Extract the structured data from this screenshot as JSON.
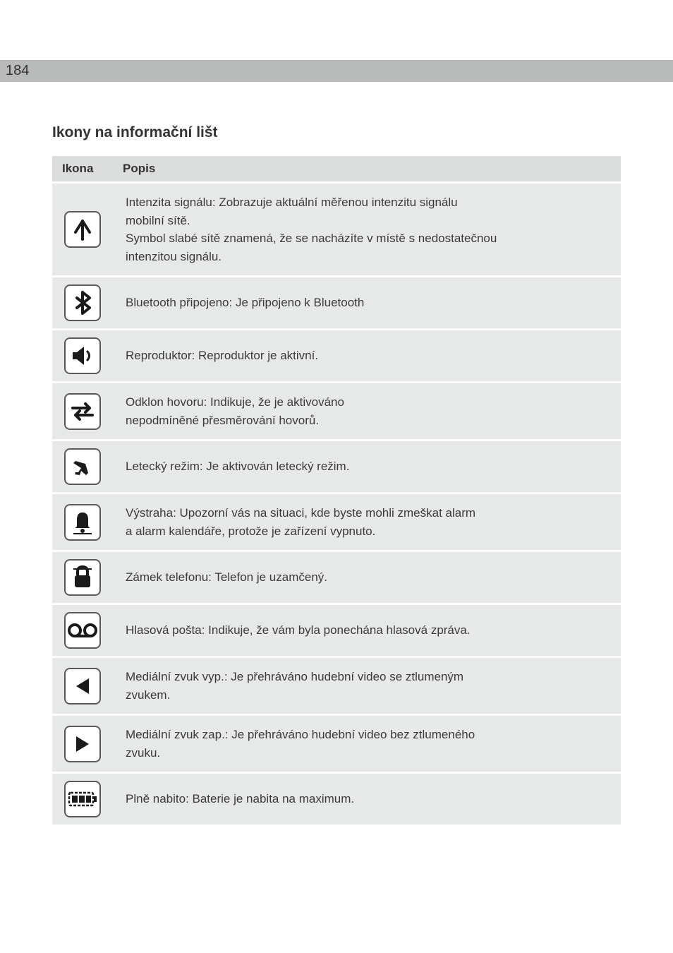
{
  "page_number": "184",
  "section_title": "Ikony na informační lišt",
  "table": {
    "headers": {
      "icon": "Ikona",
      "desc": "Popis"
    },
    "rows": [
      {
        "icon": "signal",
        "desc_lines": [
          "Intenzita signálu: Zobrazuje aktuální měřenou intenzitu signálu",
          "mobilní sítě.",
          "Symbol slabé sítě znamená, že se nacházíte v místě s nedostatečnou",
          "intenzitou signálu."
        ]
      },
      {
        "icon": "bluetooth",
        "desc_lines": [
          "Bluetooth připojeno: Je připojeno k Bluetooth"
        ]
      },
      {
        "icon": "speaker",
        "desc_lines": [
          "Reproduktor: Reproduktor je aktivní."
        ]
      },
      {
        "icon": "swap",
        "desc_lines": [
          "Odklon hovoru: Indikuje, že je aktivováno",
          "nepodmíněné přesměrování hovorů."
        ]
      },
      {
        "icon": "plane",
        "desc_lines": [
          "Letecký režim: Je aktivován letecký režim."
        ]
      },
      {
        "icon": "bell",
        "desc_lines": [
          "Výstraha: Upozorní vás na situaci, kde byste mohli zmeškat alarm",
          "a alarm kalendáře, protože je zařízení vypnuto."
        ]
      },
      {
        "icon": "lock",
        "desc_lines": [
          "Zámek telefonu: Telefon je uzamčený."
        ]
      },
      {
        "icon": "voicemail",
        "desc_lines": [
          "Hlasová pošta: Indikuje, že vám byla ponechána hlasová zpráva."
        ]
      },
      {
        "icon": "left",
        "desc_lines": [
          "Mediální zvuk vyp.: Je přehráváno hudební video se ztlumeným",
          "zvukem."
        ]
      },
      {
        "icon": "right",
        "desc_lines": [
          "Mediální zvuk zap.: Je přehráváno hudební video bez ztlumeného",
          "zvuku."
        ]
      },
      {
        "icon": "battery",
        "desc_lines": [
          "Plně nabito: Baterie je nabita na maximum."
        ]
      }
    ]
  },
  "colors": {
    "header_bar": "#b9bbba",
    "table_header_bg": "#dcdedd",
    "cell_bg": "#e7e8e8",
    "icon_stroke": "#1a1a1a"
  }
}
